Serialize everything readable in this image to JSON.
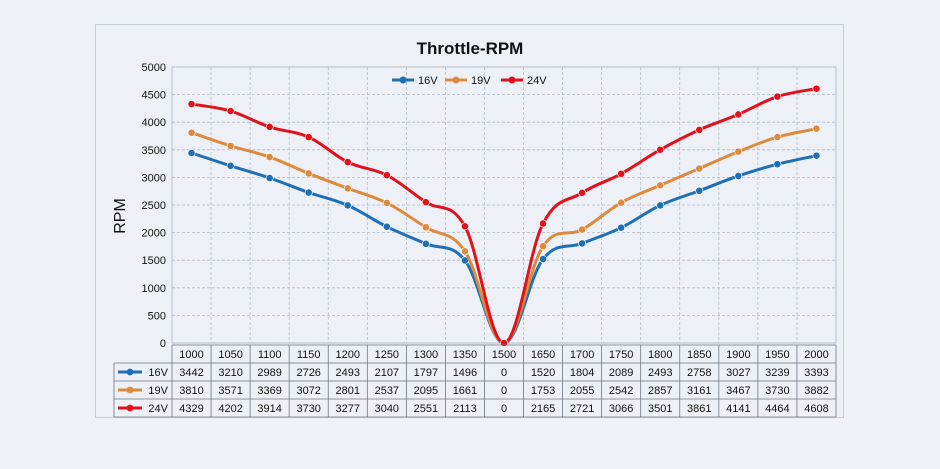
{
  "chart_data": {
    "type": "line",
    "title": "Throttle-RPM",
    "xlabel": "",
    "ylabel": "RPM",
    "ylim": [
      0,
      5000
    ],
    "yticks": [
      0,
      500,
      1000,
      1500,
      2000,
      2500,
      3000,
      3500,
      4000,
      4500,
      5000
    ],
    "grid": true,
    "legend_position": "top",
    "categories": [
      "1000",
      "1050",
      "1100",
      "1150",
      "1200",
      "1250",
      "1300",
      "1350",
      "1500",
      "1650",
      "1700",
      "1750",
      "1800",
      "1850",
      "1900",
      "1950",
      "2000"
    ],
    "series": [
      {
        "name": "16V",
        "color": "#1f6fb5",
        "values": [
          3442,
          3210,
          2989,
          2726,
          2493,
          2107,
          1797,
          1496,
          0,
          1520,
          1804,
          2089,
          2493,
          2758,
          3027,
          3239,
          3393
        ]
      },
      {
        "name": "19V",
        "color": "#dd8a3c",
        "values": [
          3810,
          3571,
          3369,
          3072,
          2801,
          2537,
          2095,
          1661,
          0,
          1753,
          2055,
          2542,
          2857,
          3161,
          3467,
          3730,
          3882
        ]
      },
      {
        "name": "24V",
        "color": "#e0121b",
        "values": [
          4329,
          4202,
          3914,
          3730,
          3277,
          3040,
          2551,
          2113,
          0,
          2165,
          2721,
          3066,
          3501,
          3861,
          4141,
          4464,
          4608
        ]
      }
    ]
  }
}
